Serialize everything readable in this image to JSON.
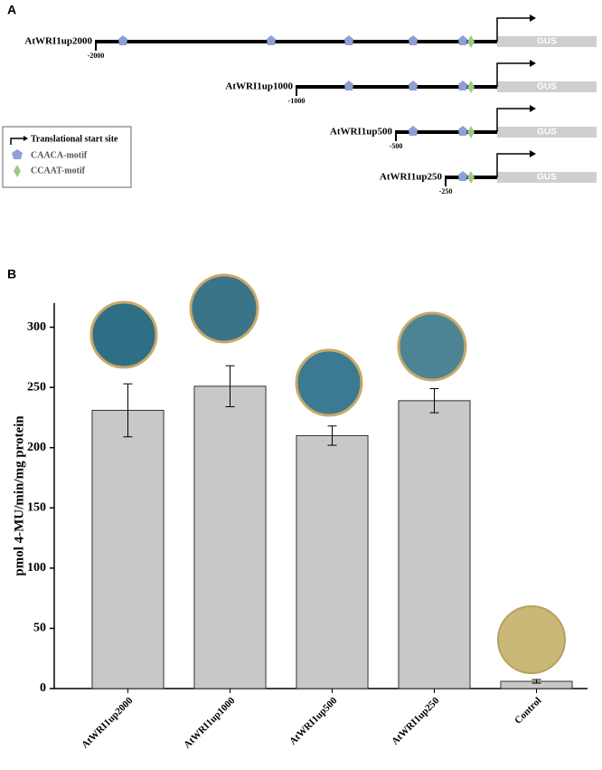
{
  "panel_a": {
    "label": "A",
    "constructs": [
      {
        "name": "AtWRI1up2000",
        "start_label": "-2000",
        "reporter": "GUS"
      },
      {
        "name": "AtWRI1up1000",
        "start_label": "-1000",
        "reporter": "GUS"
      },
      {
        "name": "AtWRI1up500",
        "start_label": "-500",
        "reporter": "GUS"
      },
      {
        "name": "AtWRI1up250",
        "start_label": "-250",
        "reporter": "GUS"
      }
    ],
    "legend": [
      "Translational start site",
      "CAACA-motif",
      "CCAAT-motif"
    ]
  },
  "chart_data": {
    "type": "bar",
    "panel_label": "B",
    "y_label": "pmol 4-MU/min/mg protein",
    "categories": [
      "AtWRI1up2000",
      "AtWRI1up1000",
      "AtWRI1up500",
      "AtWRI1up250",
      "Control"
    ],
    "values": [
      231,
      251,
      210,
      239,
      6
    ],
    "errors": [
      22,
      17,
      8,
      10,
      1.5
    ],
    "color": "#c8c8c8",
    "ylim": [
      0,
      320
    ],
    "yticks": [
      0,
      50,
      100,
      150,
      200,
      250,
      300
    ]
  }
}
